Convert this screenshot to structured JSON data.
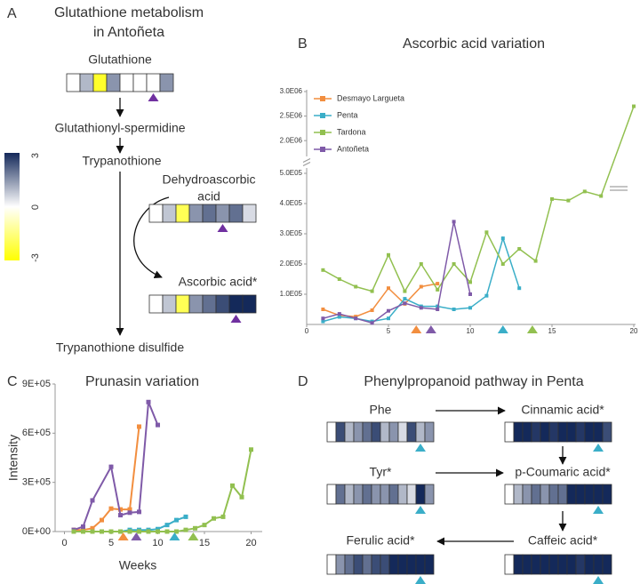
{
  "colorscale": {
    "ticks": [
      3,
      0,
      -3
    ],
    "colors": [
      "#14295a",
      "#ffffff",
      "#ffff00"
    ]
  },
  "panel_a": {
    "label": "A",
    "title": [
      "Glutathione metabolism",
      "in Antoñeta"
    ],
    "marker_color": "#7030a0",
    "nodes": [
      {
        "label": "Glutathione",
        "cells": [
          0,
          1,
          -2.5,
          1.5,
          0,
          0,
          0,
          1.5
        ],
        "marker_cell": 6
      },
      {
        "label": "Glutathionyl-spermidine"
      },
      {
        "label": "Trypanothione"
      },
      {
        "label": [
          "Dehydroascorbic",
          "acid"
        ],
        "cells": [
          0,
          0.8,
          -2,
          1.5,
          2,
          1.5,
          2,
          0.5
        ],
        "marker_cell": 5
      },
      {
        "label": "Ascorbic acid*",
        "cells": [
          0,
          0.8,
          -2,
          1.5,
          2,
          2.5,
          3,
          3
        ],
        "marker_cell": 6
      },
      {
        "label": "Trypanothione disulfide"
      }
    ]
  },
  "chart_data": [
    {
      "type": "line",
      "label": "B",
      "title": "Ascorbic acid variation",
      "legend": "upper left",
      "xlim": [
        0,
        20
      ],
      "xticks": [
        0,
        5,
        10,
        15,
        20
      ],
      "ylim": [
        0,
        3000000
      ],
      "axis_break": [
        500000,
        1750000
      ],
      "yticks": [
        {
          "value": 100000,
          "label": "1.0E05"
        },
        {
          "value": 200000,
          "label": "2.0E05"
        },
        {
          "value": 300000,
          "label": "3.0E05"
        },
        {
          "value": 400000,
          "label": "4.0E05"
        },
        {
          "value": 500000,
          "label": "5.0E05"
        },
        {
          "value": 2000000,
          "label": "2.0E06"
        },
        {
          "value": 2500000,
          "label": "2.5E06"
        },
        {
          "value": 3000000,
          "label": "3.0E06"
        }
      ],
      "series": [
        {
          "name": "Desmayo Largueta",
          "color": "#f28e3f",
          "x": [
            1,
            2,
            3,
            4,
            5,
            6,
            7,
            8
          ],
          "values": [
            50000,
            30000,
            26000,
            47000,
            120000,
            68000,
            125000,
            135000
          ]
        },
        {
          "name": "Penta",
          "color": "#3aaec8",
          "x": [
            1,
            2,
            3,
            4,
            5,
            6,
            7,
            8,
            9,
            10,
            11,
            12,
            13
          ],
          "values": [
            10000,
            25000,
            20000,
            10000,
            20000,
            85000,
            60000,
            60000,
            50000,
            55000,
            95000,
            285000,
            120000
          ]
        },
        {
          "name": "Tardona",
          "color": "#92c050",
          "x": [
            1,
            2,
            3,
            4,
            5,
            6,
            7,
            8,
            9,
            10,
            11,
            12,
            13,
            14,
            15,
            16,
            17,
            18,
            20
          ],
          "values": [
            180000,
            150000,
            125000,
            110000,
            230000,
            110000,
            200000,
            115000,
            200000,
            140000,
            305000,
            200000,
            250000,
            210000,
            415000,
            410000,
            440000,
            425000,
            2700000
          ]
        },
        {
          "name": "Antoñeta",
          "color": "#7f5aa8",
          "x": [
            1,
            2,
            3,
            4,
            5,
            6,
            7,
            8,
            9,
            10
          ],
          "values": [
            20000,
            35000,
            20000,
            5000,
            45000,
            70000,
            55000,
            50000,
            340000,
            100000
          ]
        }
      ],
      "markers": [
        {
          "x": 6.7,
          "color": "#f28e3f"
        },
        {
          "x": 7.6,
          "color": "#7f5aa8"
        },
        {
          "x": 12,
          "color": "#3aaec8"
        },
        {
          "x": 13.8,
          "color": "#92c050"
        }
      ]
    },
    {
      "type": "line",
      "label": "C",
      "title": "Prunasin variation",
      "x_label": "Weeks",
      "y_label": "Intensity",
      "xlim": [
        -1,
        21
      ],
      "xticks": [
        0,
        5,
        10,
        15,
        20
      ],
      "ylim": [
        0,
        900000
      ],
      "yticks": [
        {
          "value": 0,
          "label": "0E+00"
        },
        {
          "value": 300000,
          "label": "3E+05"
        },
        {
          "value": 600000,
          "label": "6E+05"
        },
        {
          "value": 900000,
          "label": "9E+05"
        }
      ],
      "series": [
        {
          "color": "#f28e3f",
          "x": [
            1,
            2,
            3,
            4,
            5,
            6,
            7,
            8
          ],
          "values": [
            10000,
            10000,
            20000,
            70000,
            140000,
            135000,
            135000,
            640000
          ]
        },
        {
          "color": "#7f5aa8",
          "x": [
            1,
            2,
            3,
            5,
            6,
            7,
            8,
            9,
            10
          ],
          "values": [
            10000,
            30000,
            190000,
            395000,
            100000,
            115000,
            120000,
            790000,
            650000
          ]
        },
        {
          "color": "#3aaec8",
          "x": [
            1,
            2,
            3,
            4,
            5,
            6,
            7,
            8,
            9,
            10,
            11,
            12,
            13
          ],
          "values": [
            0,
            0,
            0,
            0,
            0,
            0,
            10000,
            10000,
            10000,
            15000,
            40000,
            70000,
            90000
          ]
        },
        {
          "color": "#92c050",
          "x": [
            1,
            2,
            3,
            4,
            5,
            6,
            7,
            8,
            9,
            10,
            11,
            12,
            13,
            14,
            15,
            16,
            17,
            18,
            19,
            20
          ],
          "values": [
            0,
            0,
            0,
            0,
            0,
            0,
            0,
            0,
            0,
            0,
            0,
            0,
            10000,
            20000,
            40000,
            80000,
            90000,
            280000,
            210000,
            500000
          ]
        }
      ],
      "markers": [
        {
          "x": 6.3,
          "color": "#f28e3f"
        },
        {
          "x": 7.7,
          "color": "#7f5aa8"
        },
        {
          "x": 11.8,
          "color": "#3aaec8"
        },
        {
          "x": 13.8,
          "color": "#92c050"
        }
      ]
    }
  ],
  "panel_d": {
    "label": "D",
    "title": "Phenylpropanoid pathway in Penta",
    "marker_color": "#3aaec8",
    "nodes": [
      {
        "label": "Phe",
        "cells": [
          0,
          2.5,
          1,
          1.5,
          2,
          2.5,
          1,
          1.5,
          0.5,
          2.5,
          1,
          1.5
        ],
        "marker_cell": 10
      },
      {
        "label": "Cinnamic acid*",
        "cells": [
          0,
          3,
          3,
          2.8,
          3,
          2.8,
          3,
          3,
          2.8,
          3,
          3,
          2.5
        ],
        "marker_cell": 10
      },
      {
        "label": "Tyr*",
        "cells": [
          0,
          2,
          1,
          1.5,
          2,
          1.5,
          1.5,
          2,
          1,
          0.5,
          3,
          1.5
        ],
        "marker_cell": 10
      },
      {
        "label": "p-Coumaric acid*",
        "cells": [
          0,
          1,
          1.5,
          2,
          1.5,
          2,
          2,
          3,
          3,
          3,
          3,
          3
        ],
        "marker_cell": 10
      },
      {
        "label": "Ferulic acid*",
        "cells": [
          0,
          1.5,
          2,
          2.5,
          2,
          2.5,
          2.5,
          3,
          3,
          3,
          3,
          3
        ],
        "marker_cell": 10
      },
      {
        "label": "Caffeic acid*",
        "cells": [
          0,
          3,
          3,
          3,
          3,
          3,
          3,
          3,
          2.8,
          3,
          3,
          3
        ],
        "marker_cell": 10
      }
    ]
  }
}
